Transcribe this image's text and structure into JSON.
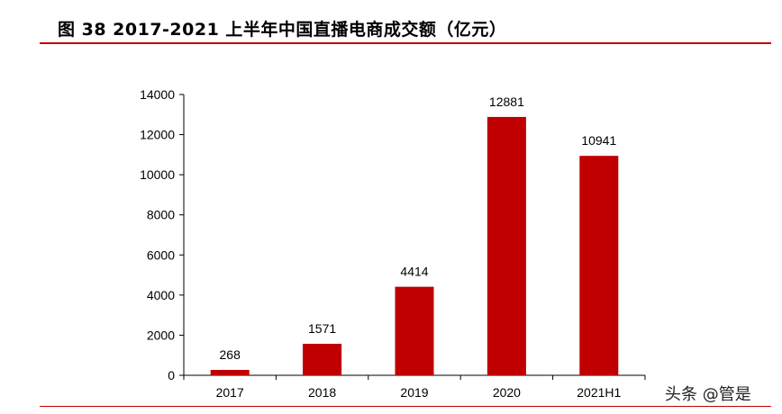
{
  "header": {
    "title": "图 38 2017-2021 上半年中国直播电商成交额（亿元）"
  },
  "watermark": "头条 @管是",
  "colors": {
    "bar": "#c00000",
    "rule": "#c00000",
    "axis": "#000000"
  },
  "chart_data": {
    "type": "bar",
    "title": "图 38 2017-2021 上半年中国直播电商成交额（亿元）",
    "categories": [
      "2017",
      "2018",
      "2019",
      "2020",
      "2021H1"
    ],
    "values": [
      268,
      1571,
      4414,
      12881,
      10941
    ],
    "data_labels": [
      "268",
      "1571",
      "4414",
      "12881",
      "10941"
    ],
    "xlabel": "",
    "ylabel": "",
    "ylim": [
      0,
      14000
    ],
    "yticks": [
      0,
      2000,
      4000,
      6000,
      8000,
      10000,
      12000,
      14000
    ],
    "grid": false,
    "legend": "none"
  }
}
